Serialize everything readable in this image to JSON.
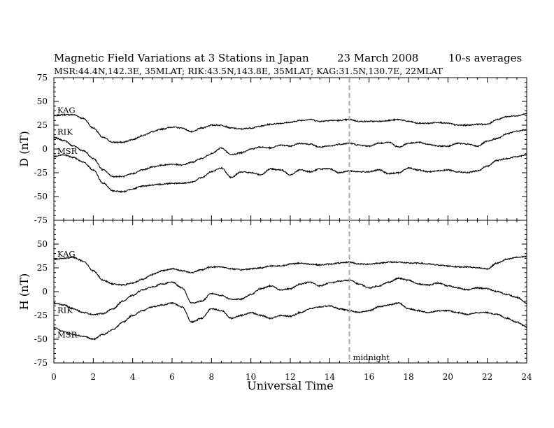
{
  "header": {
    "title_main": "Magnetic Field Variations at 3 Stations in Japan",
    "title_date": "23  March    2008",
    "title_avg": "10-s averages",
    "subtitle": "MSR:44.4N,142.3E, 35MLAT;   RIK:43.5N,143.8E, 35MLAT;   KAG:31.5N,130.7E, 22MLAT"
  },
  "annotation": {
    "midnight": "midnight",
    "midnight_ut": 15
  },
  "colors": {
    "trace": "#000000",
    "midnight_line": "#aaaaaa"
  },
  "chart_data": [
    {
      "type": "line",
      "panel": "top",
      "ylabel": "D (nT)",
      "xlim": [
        0,
        24
      ],
      "ylim": [
        -75,
        75
      ],
      "yticks": [
        75,
        50,
        25,
        0,
        -25,
        -50,
        -75
      ],
      "x": [
        0,
        0.5,
        1,
        1.5,
        2,
        2.5,
        3,
        3.5,
        4,
        4.5,
        5,
        5.5,
        6,
        6.5,
        7,
        7.5,
        8,
        8.5,
        9,
        9.5,
        10,
        10.5,
        11,
        11.5,
        12,
        12.5,
        13,
        13.5,
        14,
        14.5,
        15,
        15.5,
        16,
        16.5,
        17,
        17.5,
        18,
        18.5,
        19,
        19.5,
        20,
        20.5,
        21,
        21.5,
        22,
        22.5,
        23,
        23.5,
        24
      ],
      "series": [
        {
          "name": "KAG",
          "values": [
            35,
            36,
            36,
            32,
            22,
            12,
            7,
            7,
            10,
            14,
            18,
            21,
            23,
            22,
            18,
            22,
            25,
            25,
            22,
            21,
            22,
            24,
            26,
            27,
            28,
            30,
            31,
            29,
            30,
            30,
            31,
            29,
            29,
            29,
            30,
            31,
            29,
            27,
            27,
            28,
            27,
            25,
            25,
            26,
            26,
            31,
            34,
            35,
            37
          ]
        },
        {
          "name": "RIK",
          "values": [
            12,
            9,
            3,
            -2,
            -10,
            -22,
            -29,
            -29,
            -26,
            -22,
            -19,
            -17,
            -16,
            -17,
            -14,
            -10,
            -5,
            1,
            -6,
            -4,
            0,
            2,
            1,
            4,
            3,
            6,
            5,
            2,
            3,
            5,
            6,
            4,
            3,
            6,
            7,
            2,
            6,
            7,
            5,
            3,
            3,
            6,
            5,
            3,
            8,
            11,
            16,
            19,
            20
          ]
        },
        {
          "name": "MSR",
          "values": [
            -8,
            -6,
            -9,
            -14,
            -22,
            -36,
            -44,
            -45,
            -42,
            -39,
            -38,
            -37,
            -36,
            -36,
            -35,
            -30,
            -24,
            -20,
            -30,
            -24,
            -25,
            -27,
            -21,
            -22,
            -27,
            -22,
            -24,
            -21,
            -21,
            -25,
            -23,
            -24,
            -24,
            -22,
            -26,
            -25,
            -20,
            -22,
            -24,
            -23,
            -22,
            -24,
            -25,
            -23,
            -18,
            -12,
            -10,
            -8,
            -6
          ]
        }
      ]
    },
    {
      "type": "line",
      "panel": "bottom",
      "ylabel": "H (nT)",
      "xlabel": "Universal Time",
      "xlim": [
        0,
        24
      ],
      "ylim": [
        -75,
        75
      ],
      "yticks": [
        50,
        25,
        0,
        -25,
        -50,
        -75
      ],
      "xticks": [
        0,
        2,
        4,
        6,
        8,
        10,
        12,
        14,
        16,
        18,
        20,
        22,
        24
      ],
      "x": [
        0,
        0.5,
        1,
        1.5,
        2,
        2.5,
        3,
        3.5,
        4,
        4.5,
        5,
        5.5,
        6,
        6.5,
        7,
        7.5,
        8,
        8.5,
        9,
        9.5,
        10,
        10.5,
        11,
        11.5,
        12,
        12.5,
        13,
        13.5,
        14,
        14.5,
        15,
        15.5,
        16,
        16.5,
        17,
        17.5,
        18,
        18.5,
        19,
        19.5,
        20,
        20.5,
        21,
        21.5,
        22,
        22.5,
        23,
        23.5,
        24
      ],
      "series": [
        {
          "name": "KAG",
          "values": [
            34,
            35,
            36,
            32,
            22,
            12,
            8,
            7,
            9,
            13,
            18,
            22,
            24,
            22,
            20,
            23,
            26,
            26,
            24,
            23,
            24,
            25,
            27,
            27,
            29,
            30,
            29,
            28,
            29,
            30,
            31,
            29,
            29,
            30,
            31,
            31,
            30,
            30,
            29,
            28,
            27,
            26,
            26,
            25,
            24,
            30,
            34,
            36,
            37
          ]
        },
        {
          "name": "RIK",
          "values": [
            -12,
            -14,
            -18,
            -22,
            -24,
            -23,
            -18,
            -10,
            -4,
            2,
            5,
            8,
            10,
            4,
            -12,
            -10,
            -2,
            -4,
            -8,
            -8,
            -3,
            3,
            6,
            2,
            3,
            8,
            10,
            6,
            9,
            11,
            12,
            8,
            4,
            6,
            10,
            14,
            12,
            8,
            7,
            9,
            6,
            4,
            2,
            4,
            3,
            0,
            -3,
            -6,
            -12
          ]
        },
        {
          "name": "MSR",
          "values": [
            -38,
            -42,
            -45,
            -47,
            -50,
            -45,
            -40,
            -32,
            -25,
            -20,
            -16,
            -14,
            -12,
            -16,
            -32,
            -28,
            -18,
            -20,
            -28,
            -25,
            -22,
            -25,
            -28,
            -25,
            -26,
            -22,
            -18,
            -16,
            -15,
            -18,
            -20,
            -22,
            -20,
            -16,
            -14,
            -12,
            -18,
            -20,
            -22,
            -20,
            -20,
            -22,
            -24,
            -22,
            -22,
            -24,
            -28,
            -32,
            -37
          ]
        }
      ]
    }
  ]
}
